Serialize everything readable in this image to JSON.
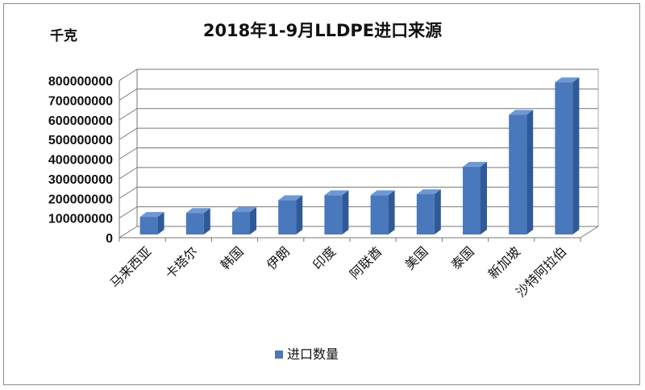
{
  "chart_data": {
    "type": "bar",
    "title": "2018年1-9月LLDPE进口来源",
    "ylabel": "千克",
    "xlabel": "",
    "categories": [
      "马来西亚",
      "卡塔尔",
      "韩国",
      "伊朗",
      "印度",
      "阿联酋",
      "美国",
      "泰国",
      "新加坡",
      "沙特阿拉伯"
    ],
    "series": [
      {
        "name": "进口数量",
        "values": [
          90000000,
          110000000,
          115000000,
          175000000,
          200000000,
          200000000,
          205000000,
          345000000,
          610000000,
          775000000
        ],
        "color": "#4a78bd"
      }
    ],
    "ylim": [
      0,
      800000000
    ],
    "yticks": [
      "0",
      "100000000",
      "200000000",
      "300000000",
      "400000000",
      "500000000",
      "600000000",
      "700000000",
      "800000000"
    ],
    "grid": true,
    "style": "3d-column",
    "legend_position": "bottom"
  }
}
